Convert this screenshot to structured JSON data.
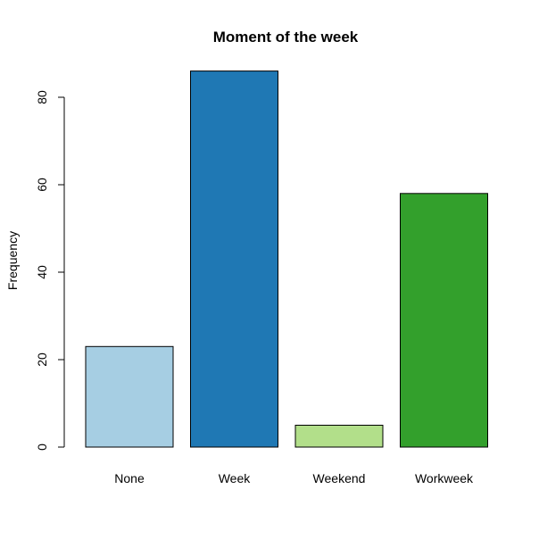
{
  "chart_data": {
    "type": "bar",
    "title": "Moment of the week",
    "xlabel": "",
    "ylabel": "Frequency",
    "categories": [
      "None",
      "Week",
      "Weekend",
      "Workweek"
    ],
    "values": [
      23,
      86,
      5,
      58
    ],
    "colors": [
      "#a6cee3",
      "#1f78b4",
      "#b2df8a",
      "#33a02c"
    ],
    "ylim": [
      0,
      90
    ],
    "yticks": [
      0,
      20,
      40,
      60,
      80
    ],
    "grid": false,
    "legend": "none"
  }
}
